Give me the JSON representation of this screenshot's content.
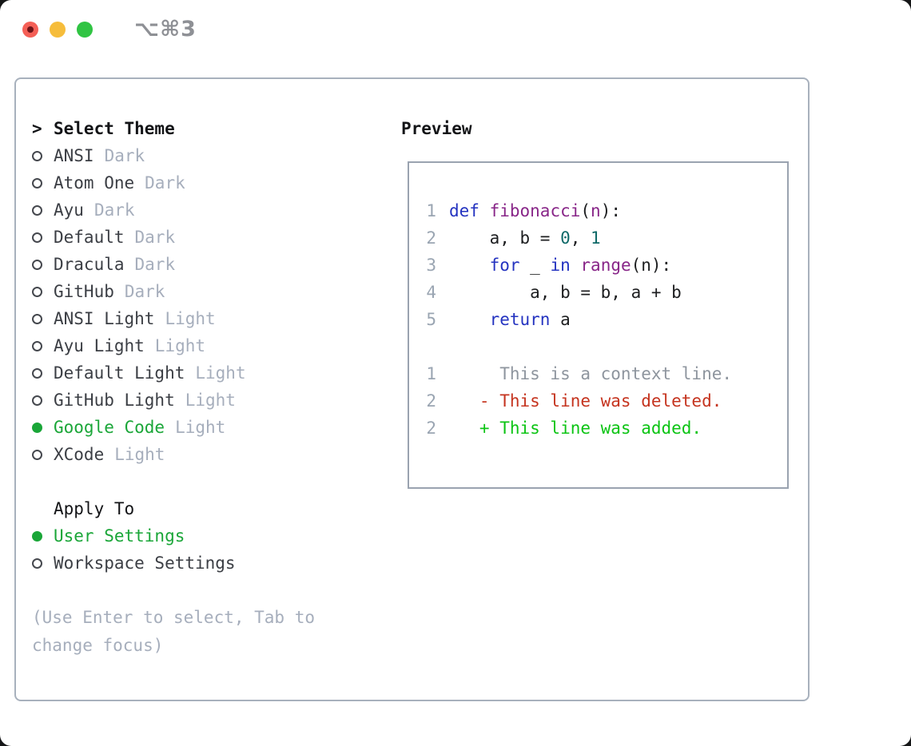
{
  "window": {
    "title": "⌥⌘3",
    "traffic_lights": {
      "close": "close",
      "minimize": "minimize",
      "zoom": "zoom"
    }
  },
  "colors": {
    "selected_green": "#1aa638",
    "added_green": "#0cc414",
    "deleted_red": "#c5341f",
    "keyword_blue": "#2433c0",
    "function_purple": "#882688",
    "literal_teal": "#0e6968",
    "muted_gray": "#a6aebc",
    "border_gray": "#a8b1bd"
  },
  "theme_panel": {
    "header": {
      "prefix": ">",
      "label": "Select Theme"
    },
    "themes": [
      {
        "name": "ANSI",
        "variant": "Dark",
        "selected": false
      },
      {
        "name": "Atom One",
        "variant": "Dark",
        "selected": false
      },
      {
        "name": "Ayu",
        "variant": "Dark",
        "selected": false
      },
      {
        "name": "Default",
        "variant": "Dark",
        "selected": false
      },
      {
        "name": "Dracula",
        "variant": "Dark",
        "selected": false
      },
      {
        "name": "GitHub",
        "variant": "Dark",
        "selected": false
      },
      {
        "name": "ANSI Light",
        "variant": "Light",
        "selected": false
      },
      {
        "name": "Ayu Light",
        "variant": "Light",
        "selected": false
      },
      {
        "name": "Default Light",
        "variant": "Light",
        "selected": false
      },
      {
        "name": "GitHub Light",
        "variant": "Light",
        "selected": false
      },
      {
        "name": "Google Code",
        "variant": "Light",
        "selected": true
      },
      {
        "name": "XCode",
        "variant": "Light",
        "selected": false
      }
    ],
    "apply_to": {
      "label": "Apply To",
      "options": [
        {
          "name": "User Settings",
          "selected": true
        },
        {
          "name": "Workspace Settings",
          "selected": false
        }
      ]
    },
    "hint": "(Use Enter to select, Tab to change focus)"
  },
  "preview": {
    "label": "Preview",
    "code_lines": [
      {
        "number": "1",
        "tokens": [
          {
            "t": "def",
            "c": "kw"
          },
          {
            "t": " ",
            "c": "pl"
          },
          {
            "t": "fibonacci",
            "c": "fn"
          },
          {
            "t": "(",
            "c": "pl"
          },
          {
            "t": "n",
            "c": "fn"
          },
          {
            "t": "):",
            "c": "pl"
          }
        ]
      },
      {
        "number": "2",
        "tokens": [
          {
            "t": "    a, b = ",
            "c": "pl"
          },
          {
            "t": "0",
            "c": "lit"
          },
          {
            "t": ", ",
            "c": "pl"
          },
          {
            "t": "1",
            "c": "lit"
          }
        ]
      },
      {
        "number": "3",
        "tokens": [
          {
            "t": "    ",
            "c": "pl"
          },
          {
            "t": "for",
            "c": "kw"
          },
          {
            "t": " _ ",
            "c": "pl"
          },
          {
            "t": "in",
            "c": "kw"
          },
          {
            "t": " ",
            "c": "pl"
          },
          {
            "t": "range",
            "c": "fn"
          },
          {
            "t": "(n):",
            "c": "pl"
          }
        ]
      },
      {
        "number": "4",
        "tokens": [
          {
            "t": "        a, b = b, a + b",
            "c": "pl"
          }
        ]
      },
      {
        "number": "5",
        "tokens": [
          {
            "t": "    ",
            "c": "pl"
          },
          {
            "t": "return",
            "c": "kw"
          },
          {
            "t": " a",
            "c": "pl"
          }
        ]
      }
    ],
    "diff_lines": [
      {
        "number": "1",
        "kind": "context",
        "text": "     This is a context line."
      },
      {
        "number": "2",
        "kind": "deleted",
        "text": "   - This line was deleted."
      },
      {
        "number": "2",
        "kind": "added",
        "text": "   + This line was added."
      }
    ]
  }
}
